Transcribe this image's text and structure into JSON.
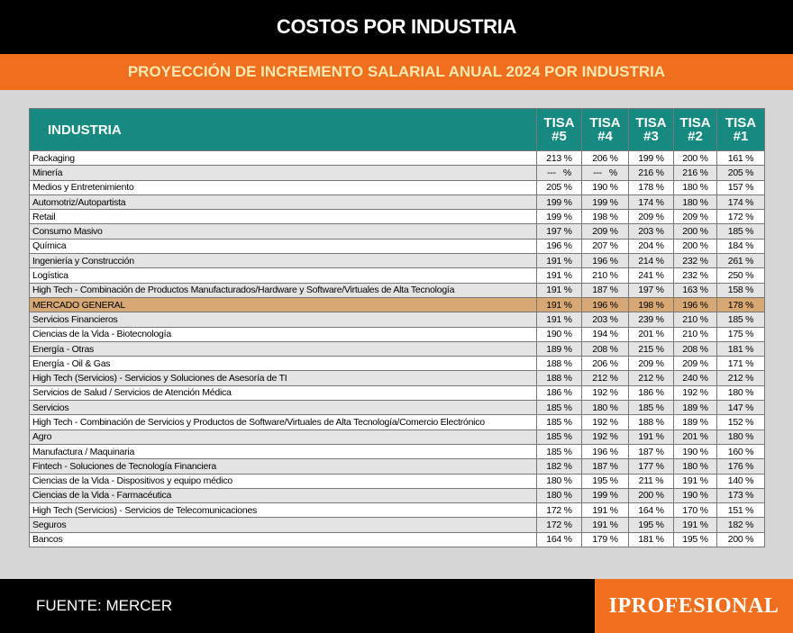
{
  "header": {
    "title": "COSTOS POR INDUSTRIA",
    "subtitle": "PROYECCIÓN DE INCREMENTO SALARIAL ANUAL 2024 POR INDUSTRIA"
  },
  "table": {
    "columns": [
      "INDUSTRIA",
      "TISA #5",
      "TISA #4",
      "TISA #3",
      "TISA #2",
      "TISA #1"
    ],
    "rows": [
      [
        "Packaging",
        "213 %",
        "206 %",
        "199 %",
        "200 %",
        "161 %"
      ],
      [
        "Minería",
        "---   %",
        "---   %",
        "216 %",
        "216 %",
        "205 %"
      ],
      [
        "Medios y Entretenimiento",
        "205 %",
        "190 %",
        "178 %",
        "180 %",
        "157 %"
      ],
      [
        "Automotriz/Autopartista",
        "199 %",
        "199 %",
        "174 %",
        "180 %",
        "174 %"
      ],
      [
        "Retail",
        "199 %",
        "198 %",
        "209 %",
        "209 %",
        "172 %"
      ],
      [
        "Consumo Masivo",
        "197 %",
        "209 %",
        "203 %",
        "200 %",
        "185 %"
      ],
      [
        "Química",
        "196 %",
        "207 %",
        "204 %",
        "200 %",
        "184 %"
      ],
      [
        "Ingeniería y Construcción",
        "191 %",
        "196 %",
        "214 %",
        "232 %",
        "261 %"
      ],
      [
        "Logística",
        "191 %",
        "210 %",
        "241 %",
        "232 %",
        "250 %"
      ],
      [
        "High Tech - Combinación de Productos Manufacturados/Hardware y Software/Virtuales de Alta Tecnología",
        "191 %",
        "187 %",
        "197 %",
        "163 %",
        "158 %"
      ],
      [
        "MERCADO GENERAL",
        "191 %",
        "196 %",
        "198 %",
        "196 %",
        "178 %"
      ],
      [
        "Servicios Financieros",
        "191 %",
        "203 %",
        "239 %",
        "210 %",
        "185 %"
      ],
      [
        "Ciencias de la Vida - Biotecnología",
        "190 %",
        "194 %",
        "201 %",
        "210 %",
        "175 %"
      ],
      [
        "Energía - Otras",
        "189 %",
        "208 %",
        "215 %",
        "208 %",
        "181 %"
      ],
      [
        "Energía - Oil & Gas",
        "188 %",
        "206 %",
        "209 %",
        "209 %",
        "171 %"
      ],
      [
        "High Tech (Servicios) - Servicios y Soluciones de Asesoría de TI",
        "188 %",
        "212 %",
        "212 %",
        "240 %",
        "212 %"
      ],
      [
        "Servicios de Salud / Servicios de Atención Médica",
        "186 %",
        "192 %",
        "186 %",
        "192 %",
        "180 %"
      ],
      [
        "Servicios",
        "185 %",
        "180 %",
        "185 %",
        "189 %",
        "147 %"
      ],
      [
        "High Tech - Combinación de Servicios y Productos de Software/Virtuales de Alta Tecnología/Comercio Electrónico",
        "185 %",
        "192 %",
        "188 %",
        "189 %",
        "152 %"
      ],
      [
        "Agro",
        "185 %",
        "192 %",
        "191 %",
        "201 %",
        "180 %"
      ],
      [
        "Manufactura / Maquinaria",
        "185 %",
        "196 %",
        "187 %",
        "190 %",
        "160 %"
      ],
      [
        "Fintech - Soluciones de Tecnología Financiera",
        "182 %",
        "187 %",
        "177 %",
        "180 %",
        "176 %"
      ],
      [
        "Ciencias de la Vida - Dispositivos y equipo médico",
        "180 %",
        "195 %",
        "211 %",
        "191 %",
        "140 %"
      ],
      [
        "Ciencias de la Vida - Farmacéutica",
        "180 %",
        "199 %",
        "200 %",
        "190 %",
        "173 %"
      ],
      [
        "High Tech (Servicios) - Servicios de Telecomunicaciones",
        "172 %",
        "191 %",
        "164 %",
        "170 %",
        "151 %"
      ],
      [
        "Seguros",
        "172 %",
        "191 %",
        "195 %",
        "191 %",
        "182 %"
      ],
      [
        "Bancos",
        "164 %",
        "179 %",
        "181 %",
        "195 %",
        "200 %"
      ]
    ]
  },
  "footer": {
    "source": "FUENTE: MERCER",
    "logo": "IPROFESIONAL"
  }
}
